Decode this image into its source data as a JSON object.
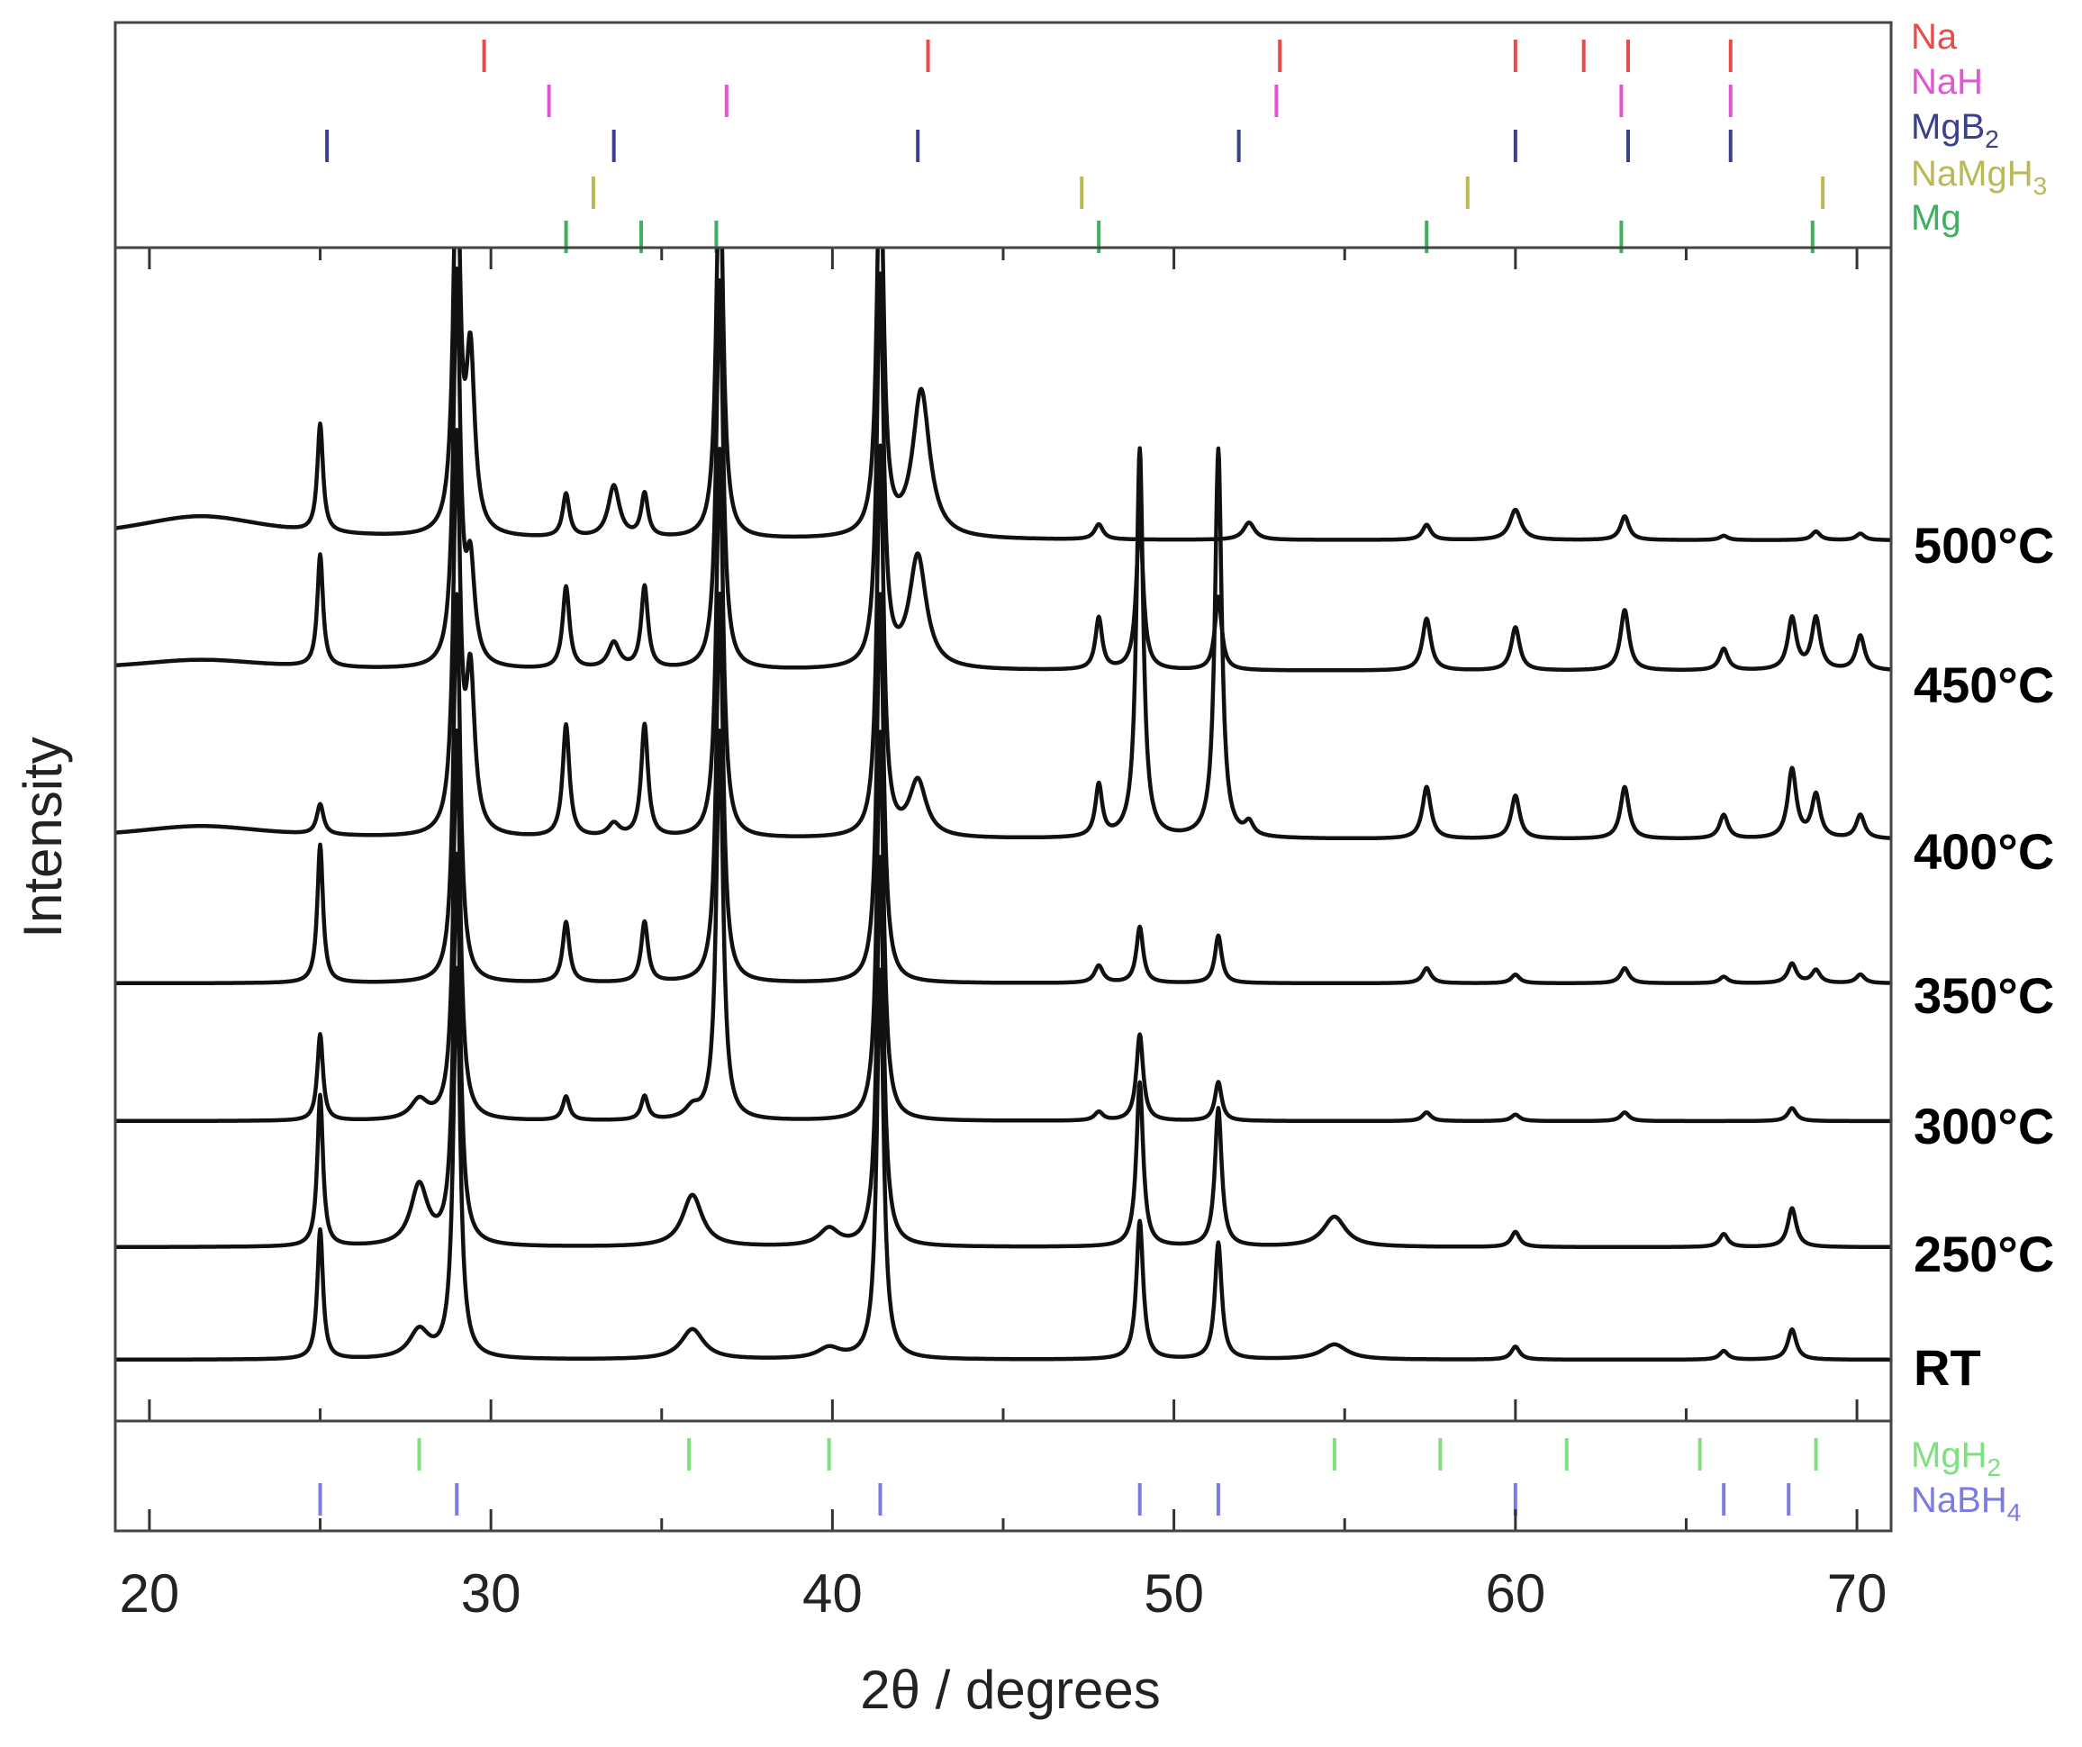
{
  "chart_data": {
    "type": "line",
    "title": "",
    "xlabel": "2θ / degrees",
    "ylabel": "Intensity",
    "xlim": [
      19,
      71
    ],
    "x_ticks": [
      20,
      30,
      40,
      50,
      60,
      70
    ],
    "grid": false,
    "stack_order_bottom_to_top": [
      "RT",
      "250°C",
      "300°C",
      "350°C",
      "400°C",
      "450°C",
      "500°C"
    ],
    "curves": [
      {
        "name": "RT",
        "baseline": 0.0,
        "peaks": [
          [
            25.0,
            3.0,
            0.1
          ],
          [
            27.9,
            0.65,
            0.35
          ],
          [
            29.0,
            9.0,
            0.12
          ],
          [
            35.9,
            0.7,
            0.4
          ],
          [
            39.9,
            0.25,
            0.4
          ],
          [
            41.4,
            9.0,
            0.12
          ],
          [
            49.0,
            3.2,
            0.12
          ],
          [
            51.3,
            2.7,
            0.12
          ],
          [
            54.7,
            0.35,
            0.45
          ],
          [
            60.0,
            0.3,
            0.15
          ],
          [
            66.1,
            0.2,
            0.15
          ],
          [
            68.1,
            0.7,
            0.15
          ]
        ]
      },
      {
        "name": "250°C",
        "baseline": 0.0,
        "peaks": [
          [
            25.0,
            3.5,
            0.1
          ],
          [
            27.9,
            1.4,
            0.3
          ],
          [
            29.0,
            9.0,
            0.12
          ],
          [
            35.9,
            1.2,
            0.35
          ],
          [
            39.9,
            0.4,
            0.35
          ],
          [
            41.4,
            9.0,
            0.12
          ],
          [
            49.0,
            3.8,
            0.12
          ],
          [
            51.3,
            3.2,
            0.12
          ],
          [
            54.7,
            0.7,
            0.4
          ],
          [
            60.0,
            0.35,
            0.15
          ],
          [
            66.1,
            0.3,
            0.15
          ],
          [
            68.1,
            0.9,
            0.15
          ]
        ]
      },
      {
        "name": "300°C",
        "baseline": 0.0,
        "peaks": [
          [
            25.0,
            2.0,
            0.1
          ],
          [
            27.9,
            0.45,
            0.3
          ],
          [
            29.0,
            9.0,
            0.12
          ],
          [
            32.2,
            0.55,
            0.12
          ],
          [
            34.5,
            0.55,
            0.12
          ],
          [
            35.9,
            0.25,
            0.25
          ],
          [
            36.7,
            9.0,
            0.12
          ],
          [
            41.4,
            9.0,
            0.12
          ],
          [
            47.8,
            0.2,
            0.15
          ],
          [
            49.0,
            2.0,
            0.12
          ],
          [
            51.3,
            0.9,
            0.12
          ],
          [
            57.4,
            0.2,
            0.15
          ],
          [
            60.0,
            0.15,
            0.15
          ],
          [
            63.2,
            0.2,
            0.15
          ],
          [
            68.1,
            0.3,
            0.15
          ]
        ]
      },
      {
        "name": "350°C",
        "baseline": 0.0,
        "peaks": [
          [
            25.0,
            3.2,
            0.1
          ],
          [
            29.0,
            9.0,
            0.12
          ],
          [
            32.2,
            1.4,
            0.12
          ],
          [
            34.5,
            1.4,
            0.12
          ],
          [
            36.7,
            9.0,
            0.12
          ],
          [
            41.4,
            9.0,
            0.12
          ],
          [
            47.8,
            0.4,
            0.15
          ],
          [
            49.0,
            1.3,
            0.12
          ],
          [
            51.3,
            1.1,
            0.12
          ],
          [
            57.4,
            0.35,
            0.15
          ],
          [
            60.0,
            0.2,
            0.15
          ],
          [
            63.2,
            0.35,
            0.15
          ],
          [
            66.1,
            0.15,
            0.15
          ],
          [
            68.1,
            0.45,
            0.15
          ],
          [
            68.8,
            0.3,
            0.15
          ],
          [
            70.1,
            0.2,
            0.15
          ]
        ]
      },
      {
        "name": "400°C",
        "baseline": 0.0,
        "peaks": [
          [
            21.5,
            0.3,
            2.5
          ],
          [
            25.0,
            0.7,
            0.12
          ],
          [
            29.0,
            9.0,
            0.12
          ],
          [
            29.4,
            3.5,
            0.15
          ],
          [
            32.2,
            2.6,
            0.12
          ],
          [
            33.6,
            0.3,
            0.2
          ],
          [
            34.5,
            2.6,
            0.12
          ],
          [
            36.7,
            9.0,
            0.12
          ],
          [
            41.4,
            9.0,
            0.12
          ],
          [
            42.5,
            1.3,
            0.3
          ],
          [
            47.8,
            1.2,
            0.12
          ],
          [
            49.0,
            9.0,
            0.12
          ],
          [
            51.3,
            9.0,
            0.12
          ],
          [
            52.2,
            0.3,
            0.15
          ],
          [
            57.4,
            1.2,
            0.15
          ],
          [
            60.0,
            1.0,
            0.15
          ],
          [
            63.2,
            1.2,
            0.15
          ],
          [
            66.1,
            0.55,
            0.15
          ],
          [
            68.1,
            1.6,
            0.15
          ],
          [
            68.8,
            1.0,
            0.15
          ],
          [
            70.1,
            0.55,
            0.15
          ]
        ]
      },
      {
        "name": "450°C",
        "baseline": 0.0,
        "peaks": [
          [
            21.5,
            0.25,
            2.5
          ],
          [
            25.0,
            2.6,
            0.1
          ],
          [
            29.0,
            9.0,
            0.12
          ],
          [
            29.4,
            2.2,
            0.15
          ],
          [
            32.2,
            1.9,
            0.12
          ],
          [
            33.6,
            0.6,
            0.2
          ],
          [
            34.5,
            1.9,
            0.12
          ],
          [
            36.7,
            9.0,
            0.12
          ],
          [
            41.4,
            9.0,
            0.12
          ],
          [
            42.5,
            2.6,
            0.3
          ],
          [
            47.8,
            1.2,
            0.12
          ],
          [
            49.0,
            3.5,
            0.12
          ],
          [
            51.3,
            1.7,
            0.12
          ],
          [
            57.4,
            1.2,
            0.15
          ],
          [
            60.0,
            1.0,
            0.15
          ],
          [
            63.2,
            1.4,
            0.15
          ],
          [
            66.1,
            0.5,
            0.15
          ],
          [
            68.1,
            1.2,
            0.15
          ],
          [
            68.8,
            1.2,
            0.15
          ],
          [
            70.1,
            0.8,
            0.15
          ]
        ]
      },
      {
        "name": "500°C",
        "baseline": 0.0,
        "peaks": [
          [
            21.5,
            0.55,
            2.5
          ],
          [
            25.0,
            2.5,
            0.1
          ],
          [
            29.0,
            9.0,
            0.12
          ],
          [
            29.4,
            4.0,
            0.15
          ],
          [
            32.2,
            1.0,
            0.12
          ],
          [
            33.6,
            1.2,
            0.2
          ],
          [
            34.5,
            1.0,
            0.12
          ],
          [
            36.7,
            9.0,
            0.12
          ],
          [
            41.4,
            9.0,
            0.12
          ],
          [
            42.6,
            3.4,
            0.3
          ],
          [
            47.8,
            0.35,
            0.15
          ],
          [
            52.2,
            0.4,
            0.2
          ],
          [
            57.4,
            0.35,
            0.15
          ],
          [
            60.0,
            0.7,
            0.2
          ],
          [
            63.2,
            0.55,
            0.15
          ],
          [
            66.1,
            0.1,
            0.15
          ],
          [
            68.8,
            0.2,
            0.15
          ],
          [
            70.1,
            0.15,
            0.15
          ]
        ]
      }
    ],
    "reference_markers_top": [
      {
        "name": "Na",
        "color": "#e74c4c",
        "positions": [
          29.8,
          42.8,
          53.1,
          60.0,
          62.0,
          63.3,
          66.3
        ]
      },
      {
        "name": "NaH",
        "color": "#e255d3",
        "positions": [
          31.7,
          36.9,
          53.0,
          63.1,
          66.3
        ]
      },
      {
        "name": "MgB2",
        "color": "#3b3f8f",
        "positions": [
          25.2,
          33.6,
          42.5,
          51.9,
          60.0,
          63.3,
          66.3
        ]
      },
      {
        "name": "NaMgH3",
        "color": "#b9ba55",
        "positions": [
          33.0,
          47.3,
          58.6,
          69.0
        ]
      },
      {
        "name": "Mg",
        "color": "#3fb062",
        "positions": [
          32.2,
          34.4,
          36.6,
          47.8,
          57.4,
          63.1,
          68.7
        ]
      }
    ],
    "reference_markers_bottom": [
      {
        "name": "MgH2",
        "color": "#7ee07e",
        "positions": [
          27.9,
          35.8,
          39.9,
          54.7,
          57.8,
          61.5,
          65.4,
          68.8
        ]
      },
      {
        "name": "NaBH4",
        "color": "#7b7be0",
        "positions": [
          25.0,
          29.0,
          41.4,
          49.0,
          51.3,
          60.0,
          66.1,
          68.0
        ]
      }
    ]
  }
}
